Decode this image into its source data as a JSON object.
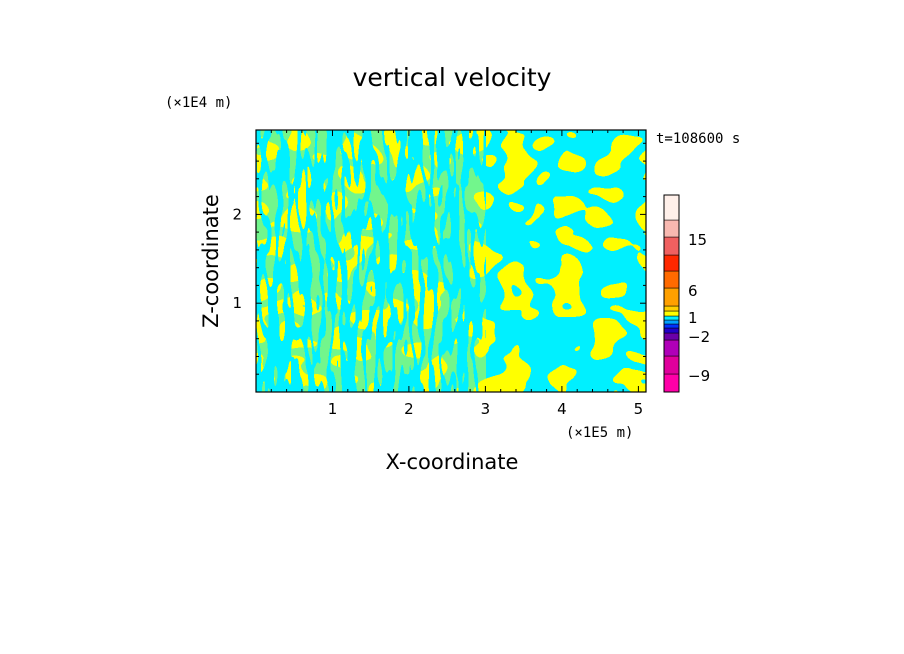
{
  "chart_data": {
    "type": "heatmap",
    "title": "vertical velocity",
    "xlabel": "X-coordinate",
    "ylabel": "Z-coordinate",
    "x_unit": "(×1E5 m)",
    "y_unit": "(×1E4 m)",
    "time_label": "t=108600 s",
    "xlim": [
      0,
      5.1
    ],
    "ylim": [
      0,
      2.95
    ],
    "xticks": [
      1,
      2,
      3,
      4,
      5
    ],
    "yticks": [
      1,
      2
    ],
    "xtick_labels": [
      "1",
      "2",
      "3",
      "4",
      "5"
    ],
    "ytick_labels": [
      "1",
      "2"
    ],
    "dominant_fill": {
      "positive": "#ffff00",
      "negative": "#00f0ff"
    },
    "colorbar": {
      "levels": [
        {
          "color": "#ff00a8"
        },
        {
          "color": "#e0009c"
        },
        {
          "color": "#b000b8"
        },
        {
          "color": "#6a00a8"
        },
        {
          "color": "#2200c8"
        },
        {
          "color": "#0030ff"
        },
        {
          "color": "#00a0ff"
        },
        {
          "color": "#00f0ff"
        },
        {
          "color": "#ffff00"
        },
        {
          "color": "#ffd000"
        },
        {
          "color": "#ffa000"
        },
        {
          "color": "#ff6a00"
        },
        {
          "color": "#ff2800"
        },
        {
          "color": "#f06060"
        },
        {
          "color": "#f8b8b0"
        },
        {
          "color": "#fff0ea"
        }
      ],
      "tick_labels": [
        "15",
        "6",
        "1",
        "−2",
        "−9"
      ]
    }
  }
}
